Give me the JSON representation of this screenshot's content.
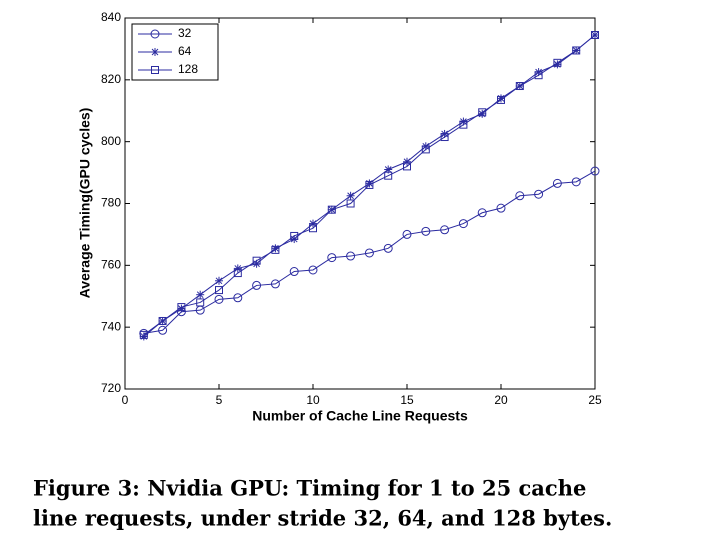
{
  "chart_data": {
    "type": "line",
    "xlabel": "Number of Cache Line Requests",
    "ylabel": "Average Timing(GPU cycles)",
    "x": [
      1,
      2,
      3,
      4,
      5,
      6,
      7,
      8,
      9,
      10,
      11,
      12,
      13,
      14,
      15,
      16,
      17,
      18,
      19,
      20,
      21,
      22,
      23,
      24,
      25
    ],
    "series": [
      {
        "name": "32",
        "color": "#2b2ba0",
        "marker": "circle",
        "values": [
          738,
          739,
          745,
          745.5,
          749,
          749.5,
          753.5,
          754,
          758,
          758.5,
          762.5,
          763,
          764,
          765.5,
          770,
          771,
          771.5,
          773.5,
          777,
          778.5,
          782.5,
          783,
          786.5,
          787,
          790.5
        ]
      },
      {
        "name": "64",
        "color": "#2b2ba0",
        "marker": "star",
        "values": [
          737,
          742,
          746,
          750.5,
          755,
          759,
          760.5,
          765.5,
          768.5,
          773.5,
          778,
          782.5,
          786.5,
          791,
          793.5,
          798.5,
          802.5,
          806.5,
          809,
          814,
          818,
          822.5,
          825,
          829.5,
          834.5
        ]
      },
      {
        "name": "128",
        "color": "#2b2ba0",
        "marker": "square",
        "values": [
          737.5,
          742,
          746.5,
          748,
          752,
          757.5,
          761.5,
          765,
          769.5,
          772,
          778,
          780,
          786,
          789,
          792,
          797.5,
          801.5,
          805.5,
          809.5,
          813.5,
          818,
          821.5,
          825.5,
          829.5,
          834.5
        ]
      }
    ],
    "xlim": [
      0,
      25
    ],
    "xticks": [
      0,
      5,
      10,
      15,
      20,
      25
    ],
    "ylim": [
      720,
      840
    ],
    "yticks": [
      720,
      740,
      760,
      780,
      800,
      820,
      840
    ],
    "grid": false,
    "legend": "upper left",
    "caption": [
      "Figure 3: Nvidia GPU: Timing for 1 to 25 cache",
      "line requests, under stride 32, 64, and 128 bytes."
    ]
  }
}
